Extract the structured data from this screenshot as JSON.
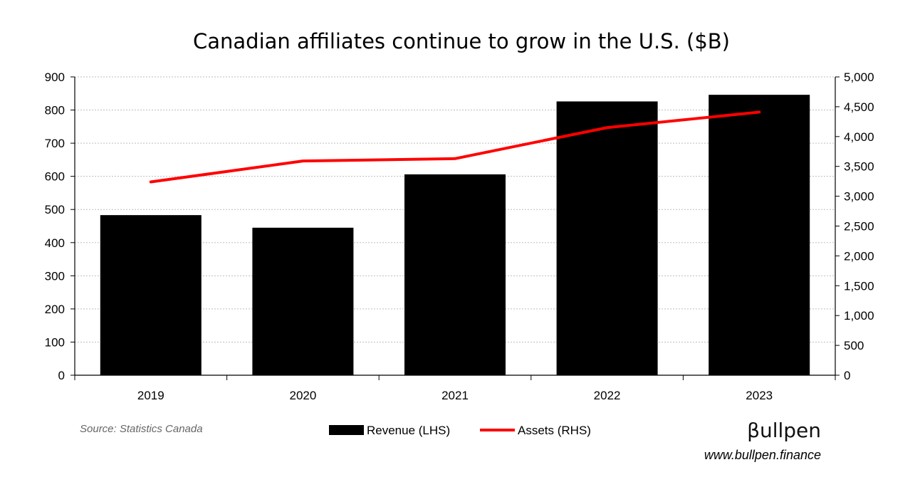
{
  "chart_data": {
    "type": "bar",
    "title": "Canadian affiliates continue to grow in the U.S. ($B)",
    "categories": [
      "2019",
      "2020",
      "2021",
      "2022",
      "2023"
    ],
    "series": [
      {
        "name": "Revenue (LHS)",
        "type": "bar",
        "axis": "left",
        "color": "#000000",
        "values": [
          483,
          445,
          606,
          826,
          846
        ]
      },
      {
        "name": "Assets (RHS)",
        "type": "line",
        "axis": "right",
        "color": "#ff0000",
        "values": [
          3240,
          3590,
          3630,
          4150,
          4410
        ]
      }
    ],
    "y_left": {
      "min": 0,
      "max": 900,
      "step": 100,
      "tick_labels": [
        "0",
        "100",
        "200",
        "300",
        "400",
        "500",
        "600",
        "700",
        "800",
        "900"
      ]
    },
    "y_right": {
      "min": 0,
      "max": 5000,
      "step": 500,
      "tick_labels": [
        "0",
        "500",
        "1,000",
        "1,500",
        "2,000",
        "2,500",
        "3,000",
        "3,500",
        "4,000",
        "4,500",
        "5,000"
      ]
    },
    "grid": "horizontal dotted",
    "legend": "bottom-center"
  },
  "source": "Source: Statistics Canada",
  "brand": {
    "name": "βullpen",
    "url": "www.bullpen.finance"
  }
}
